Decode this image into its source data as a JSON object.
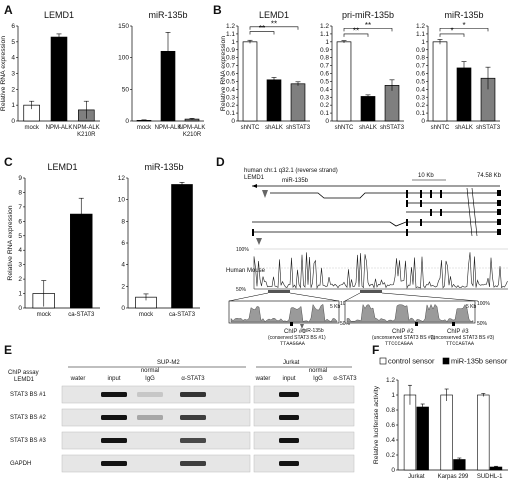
{
  "panels": {
    "A": "A",
    "B": "B",
    "C": "C",
    "D": "D",
    "E": "E",
    "F": "F"
  },
  "chart_data": [
    {
      "id": "A1",
      "type": "bar",
      "title": "LEMD1",
      "ylabel": "Relative RNA expression",
      "categories": [
        "mock",
        "NPM-ALK",
        "NPM-ALK\nK210R"
      ],
      "values": [
        1,
        5.3,
        0.7
      ],
      "errors": [
        0.25,
        0.2,
        0.55
      ],
      "fills": [
        "#ffffff",
        "#000000",
        "#7f7f7f"
      ],
      "ylim": [
        0,
        6
      ],
      "ticks": [
        0,
        1,
        2,
        3,
        4,
        5,
        6
      ]
    },
    {
      "id": "A2",
      "type": "bar",
      "title": "miR-135b",
      "ylabel": "",
      "categories": [
        "mock",
        "NPM-ALK",
        "NPM-ALK\nK210R"
      ],
      "values": [
        1,
        110,
        3
      ],
      "errors": [
        0.8,
        30,
        1.2
      ],
      "fills": [
        "#ffffff",
        "#000000",
        "#7f7f7f"
      ],
      "ylim": [
        0,
        150
      ],
      "ticks": [
        0,
        50,
        100,
        150
      ]
    },
    {
      "id": "B1",
      "type": "bar",
      "title": "LEMD1",
      "ylabel": "Relative RNA expression",
      "categories": [
        "shNTC",
        "shALK",
        "shSTAT3"
      ],
      "values": [
        1.0,
        0.52,
        0.47
      ],
      "errors": [
        0.02,
        0.03,
        0.025
      ],
      "fills": [
        "#ffffff",
        "#000000",
        "#7f7f7f"
      ],
      "ylim": [
        0,
        1.2
      ],
      "ticks": [
        0,
        0.1,
        0.2,
        0.3,
        0.4,
        0.5,
        0.6,
        0.7,
        0.8,
        0.9,
        1,
        1.1,
        1.2
      ],
      "tick_labels": [
        "0",
        "0.1",
        "0.2",
        "0.3",
        "0.4",
        "0.5",
        "0.6",
        "0.7",
        "0.8",
        "0.9",
        "1",
        "1.1",
        "1.2"
      ],
      "sig": [
        {
          "from": 0,
          "to": 1,
          "label": "**",
          "level": 1.13
        },
        {
          "from": 0,
          "to": 2,
          "label": "**",
          "level": 1.19
        }
      ]
    },
    {
      "id": "B2",
      "type": "bar",
      "title": "pri-miR-135b",
      "ylabel": "",
      "categories": [
        "shNTC",
        "shALK",
        "shSTAT3"
      ],
      "values": [
        1.0,
        0.31,
        0.45
      ],
      "errors": [
        0.015,
        0.02,
        0.07
      ],
      "fills": [
        "#ffffff",
        "#000000",
        "#7f7f7f"
      ],
      "ylim": [
        0,
        1.2
      ],
      "ticks": [
        0,
        0.1,
        0.2,
        0.3,
        0.4,
        0.5,
        0.6,
        0.7,
        0.8,
        0.9,
        1,
        1.1,
        1.2
      ],
      "tick_labels": [
        "0",
        "0.1",
        "0.2",
        "0.3",
        "0.4",
        "0.5",
        "0.6",
        "0.7",
        "0.8",
        "0.9",
        "1",
        "1.1",
        "1.2"
      ],
      "sig": [
        {
          "from": 0,
          "to": 1,
          "label": "**",
          "level": 1.1
        },
        {
          "from": 0,
          "to": 2,
          "label": "**",
          "level": 1.17
        }
      ]
    },
    {
      "id": "B3",
      "type": "bar",
      "title": "miR-135b",
      "ylabel": "",
      "categories": [
        "shNTC",
        "shALK",
        "shSTAT3"
      ],
      "values": [
        1.0,
        0.67,
        0.54
      ],
      "errors": [
        0.03,
        0.08,
        0.14
      ],
      "fills": [
        "#ffffff",
        "#000000",
        "#7f7f7f"
      ],
      "ylim": [
        0,
        1.2
      ],
      "ticks": [
        0,
        0.1,
        0.2,
        0.3,
        0.4,
        0.5,
        0.6,
        0.7,
        0.8,
        0.9,
        1,
        1.1,
        1.2
      ],
      "tick_labels": [
        "0",
        "0.1",
        "0.2",
        "0.3",
        "0.4",
        "0.5",
        "0.6",
        "0.7",
        "0.8",
        "0.9",
        "1",
        "1.1",
        "1.2"
      ],
      "sig": [
        {
          "from": 0,
          "to": 1,
          "label": "*",
          "level": 1.1
        },
        {
          "from": 0,
          "to": 2,
          "label": "*",
          "level": 1.17
        }
      ]
    },
    {
      "id": "C1",
      "type": "bar",
      "title": "LEMD1",
      "ylabel": "Relative RNA expression",
      "categories": [
        "mock",
        "ca-STAT3"
      ],
      "values": [
        1,
        6.5
      ],
      "errors": [
        0.9,
        1.1
      ],
      "fills": [
        "#ffffff",
        "#000000"
      ],
      "ylim": [
        0,
        9
      ],
      "ticks": [
        0,
        1,
        2,
        3,
        4,
        5,
        6,
        7,
        8,
        9
      ]
    },
    {
      "id": "C2",
      "type": "bar",
      "title": "miR-135b",
      "ylabel": "",
      "categories": [
        "mock",
        "ca-STAT3"
      ],
      "values": [
        1,
        11.4
      ],
      "errors": [
        0.3,
        0.2
      ],
      "fills": [
        "#ffffff",
        "#000000"
      ],
      "ylim": [
        0,
        12
      ],
      "ticks": [
        0,
        2,
        4,
        6,
        8,
        10,
        12
      ]
    },
    {
      "id": "F",
      "type": "bar",
      "title": "",
      "ylabel": "Relative luciferase activity",
      "categories": [
        "Jurkat",
        "Karpas 299",
        "SUDHL-1"
      ],
      "series": [
        {
          "name": "control sensor",
          "values": [
            1.0,
            1.0,
            1.0
          ],
          "errors": [
            0.13,
            0.08,
            0.02
          ],
          "fill": "#ffffff"
        },
        {
          "name": "miR-135b sensor",
          "values": [
            0.84,
            0.14,
            0.04
          ],
          "errors": [
            0.04,
            0.02,
            0.01
          ],
          "fill": "#000000"
        }
      ],
      "ylim": [
        0,
        1.2
      ],
      "ticks": [
        0,
        0.2,
        0.4,
        0.6,
        0.8,
        1.0,
        1.2
      ],
      "tick_labels": [
        "0",
        "0.2",
        "0.4",
        "0.6",
        "0.8",
        "1",
        "1.2"
      ],
      "legend": "top"
    }
  ],
  "diagram": {
    "header": [
      "human chr.1 q32.1 (reverse strand)",
      "LEMD1"
    ],
    "mir_label": "miR-135b",
    "scale_label": "10 Kb",
    "end_label": "74.58 Kb",
    "pct_top": "100%",
    "pct_bottom": "50%",
    "species": "Human Mouse",
    "zoom_pct_top": "100%",
    "zoom_pct_bottom": "50%",
    "zoom_mark": "5 Kb",
    "chip1": [
      "ChIP #1",
      "(conserved STAT3 BS #1)",
      "TTAAGGAA"
    ],
    "chip2": [
      "ChIP #2",
      "(unconserved STAT3 BS #2)",
      "TTCCCAGAA"
    ],
    "chip3": [
      "ChIP #3",
      "(unconserved STAT3 BS #3)",
      "TTCCAGTAA"
    ],
    "mir_zoom_label": "miR-135b"
  },
  "gel": {
    "title_left": "SUP-M2",
    "title_right": "Jurkat",
    "row_header": [
      "ChIP assay",
      "LEMD1"
    ],
    "lanes": [
      "water",
      "input",
      "normal IgG",
      "α-STAT3"
    ],
    "lane_normal": "normal",
    "lane_igg": "IgG",
    "rows": [
      "STAT3 BS #1",
      "STAT3 BS #2",
      "STAT3 BS #3",
      "GAPDH"
    ]
  }
}
